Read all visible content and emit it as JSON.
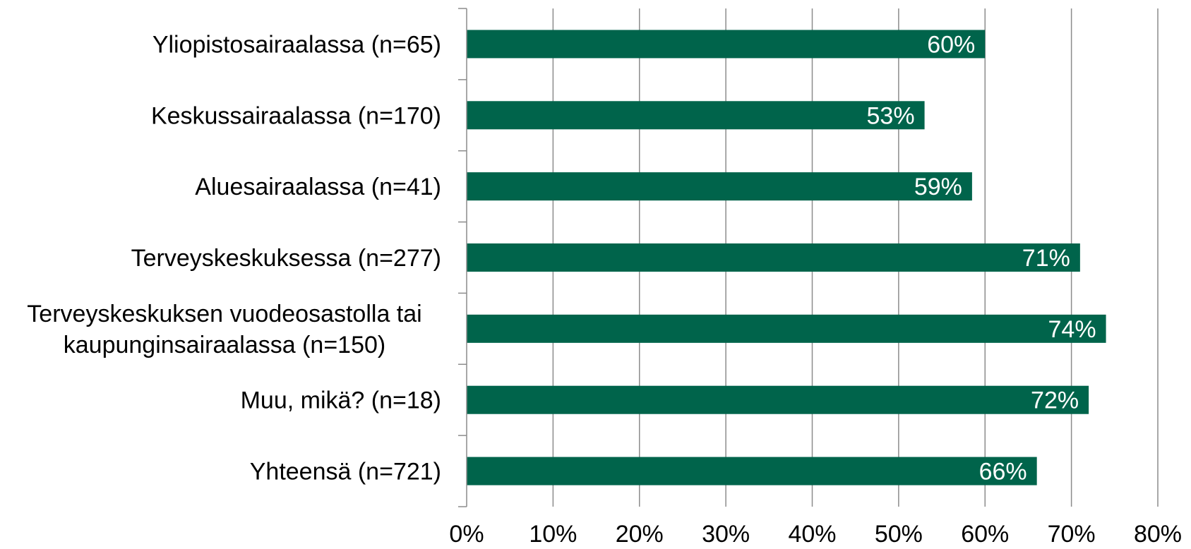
{
  "chart_data": {
    "type": "bar",
    "orientation": "horizontal",
    "categories": [
      [
        "Yliopistosairaalassa (n=65)"
      ],
      [
        "Keskussairaalassa (n=170)"
      ],
      [
        "Aluesairaalassa (n=41)"
      ],
      [
        "Terveyskeskuksessa (n=277)"
      ],
      [
        "Terveyskeskuksen vuodeosastolla tai",
        "kaupunginsairaalassa (n=150)"
      ],
      [
        "Muu, mikä? (n=18)"
      ],
      [
        "Yhteensä (n=721)"
      ]
    ],
    "values": [
      60,
      53,
      58.5,
      71,
      74,
      72,
      66
    ],
    "data_labels": [
      "60%",
      "53%",
      "59%",
      "71%",
      "74%",
      "72%",
      "66%"
    ],
    "xlim": [
      0,
      80
    ],
    "xticks": [
      0,
      10,
      20,
      30,
      40,
      50,
      60,
      70,
      80
    ],
    "xtick_labels": [
      "0%",
      "10%",
      "20%",
      "30%",
      "40%",
      "50%",
      "60%",
      "70%",
      "80%"
    ],
    "grid": true,
    "bar_color": "#00644b",
    "grid_color": "#8c8c8c",
    "data_label_color": "#ffffff"
  }
}
